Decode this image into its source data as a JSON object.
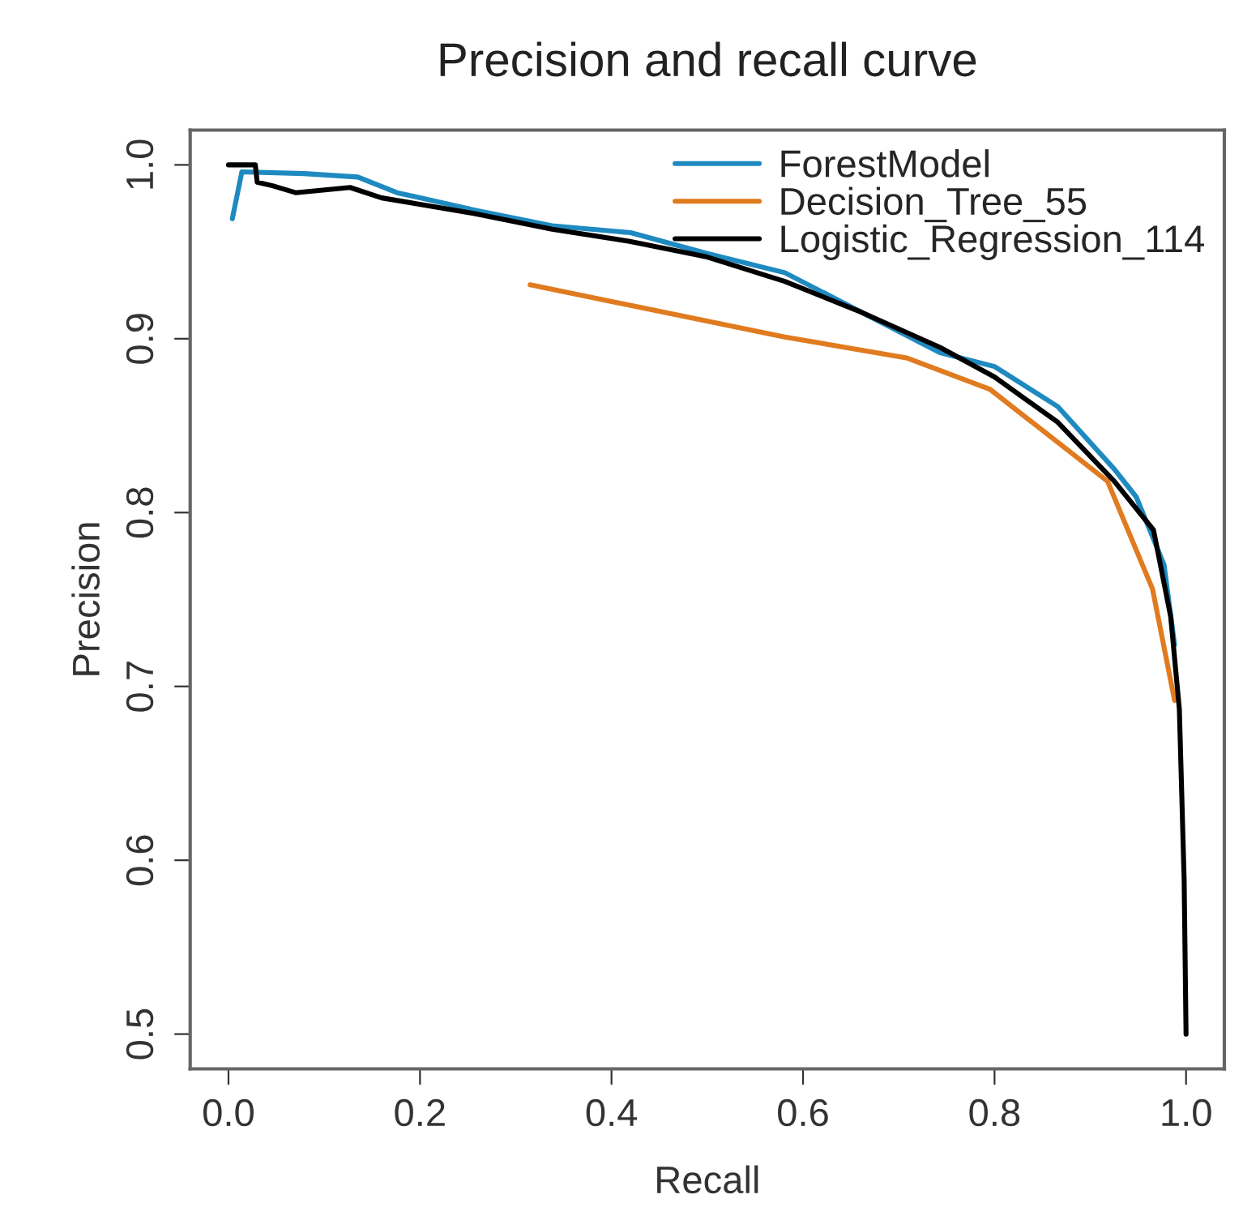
{
  "chart_data": {
    "type": "line",
    "title": "Precision and recall curve",
    "xlabel": "Recall",
    "ylabel": "Precision",
    "xlim": [
      -0.04,
      1.04
    ],
    "ylim": [
      0.48,
      1.02
    ],
    "xticks": [
      {
        "value": 0,
        "label": "0.0"
      },
      0.2,
      0.4,
      0.6,
      0.8,
      {
        "value": 1,
        "label": "1.0"
      }
    ],
    "yticks": [
      0.5,
      0.6,
      0.7,
      0.8,
      0.9,
      {
        "value": 1,
        "label": "1.0"
      }
    ],
    "grid": false,
    "legend": "top right",
    "marker": "none",
    "line_style": "solid",
    "series": [
      {
        "name": "ForestModel",
        "color": "#1f8ac0",
        "x": [
          0.004,
          0.014,
          0.079,
          0.135,
          0.176,
          0.257,
          0.338,
          0.42,
          0.5,
          0.581,
          0.662,
          0.743,
          0.8,
          0.866,
          0.925,
          0.948,
          0.977,
          0.988
        ],
        "values": [
          0.969,
          0.996,
          0.995,
          0.993,
          0.984,
          0.974,
          0.965,
          0.961,
          0.949,
          0.938,
          0.915,
          0.892,
          0.884,
          0.861,
          0.825,
          0.809,
          0.77,
          0.724
        ]
      },
      {
        "name": "Decision_Tree_55",
        "color": "#e07b20",
        "x": [
          0.315,
          0.581,
          0.708,
          0.795,
          0.918,
          0.965,
          0.988
        ],
        "values": [
          0.931,
          0.901,
          0.889,
          0.871,
          0.818,
          0.756,
          0.692
        ]
      },
      {
        "name": "Logistic_Regression_114",
        "color": "#000000",
        "x": [
          0.0,
          0.028,
          0.03,
          0.046,
          0.07,
          0.127,
          0.16,
          0.257,
          0.338,
          0.419,
          0.5,
          0.581,
          0.662,
          0.743,
          0.8,
          0.866,
          0.925,
          0.966,
          0.984,
          0.993,
          0.998,
          1.0
        ],
        "values": [
          1.0,
          1.0,
          0.99,
          0.988,
          0.984,
          0.987,
          0.981,
          0.972,
          0.963,
          0.956,
          0.947,
          0.933,
          0.915,
          0.895,
          0.878,
          0.852,
          0.818,
          0.79,
          0.74,
          0.687,
          0.589,
          0.5
        ]
      }
    ]
  }
}
